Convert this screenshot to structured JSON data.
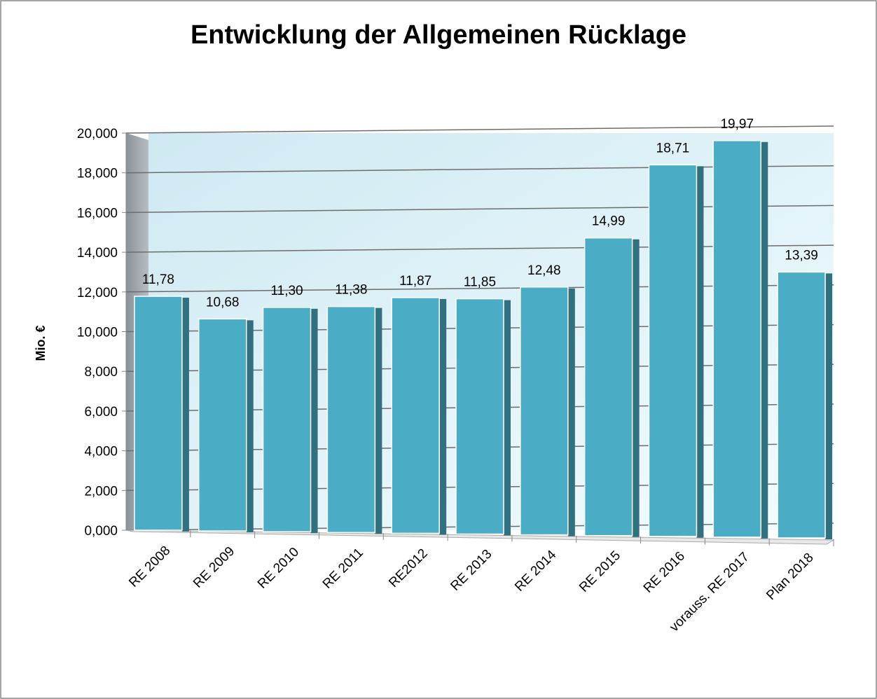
{
  "chart_data": {
    "type": "bar",
    "title": "Entwicklung der Allgemeinen Rücklage",
    "y_label": "Mio. €",
    "categories": [
      "RE 2008",
      "RE 2009",
      "RE 2010",
      "RE 2011",
      "RE2012",
      "RE 2013",
      "RE 2014",
      "RE 2015",
      "RE 2016",
      "vorauss. RE 2017",
      "Plan 2018"
    ],
    "values": [
      11.78,
      10.68,
      11.3,
      11.38,
      11.87,
      11.85,
      12.48,
      14.99,
      18.71,
      19.97,
      13.39
    ],
    "value_labels": [
      "11,78",
      "10,68",
      "11,30",
      "11,38",
      "11,87",
      "11,85",
      "12,48",
      "14,99",
      "18,71",
      "19,97",
      "13,39"
    ],
    "color": "#4bacc6",
    "ylim": [
      0,
      20
    ],
    "yticks": [
      {
        "value": 0,
        "label": "0,000"
      },
      {
        "value": 2,
        "label": "2,000"
      },
      {
        "value": 4,
        "label": "4,000"
      },
      {
        "value": 6,
        "label": "6,000"
      },
      {
        "value": 8,
        "label": "8,000"
      },
      {
        "value": 10,
        "label": "10,000"
      },
      {
        "value": 12,
        "label": "12,000"
      },
      {
        "value": 14,
        "label": "14,000"
      },
      {
        "value": 16,
        "label": "16,000"
      },
      {
        "value": 18,
        "label": "18,000"
      },
      {
        "value": 20,
        "label": "20,000"
      }
    ],
    "grid": true
  }
}
